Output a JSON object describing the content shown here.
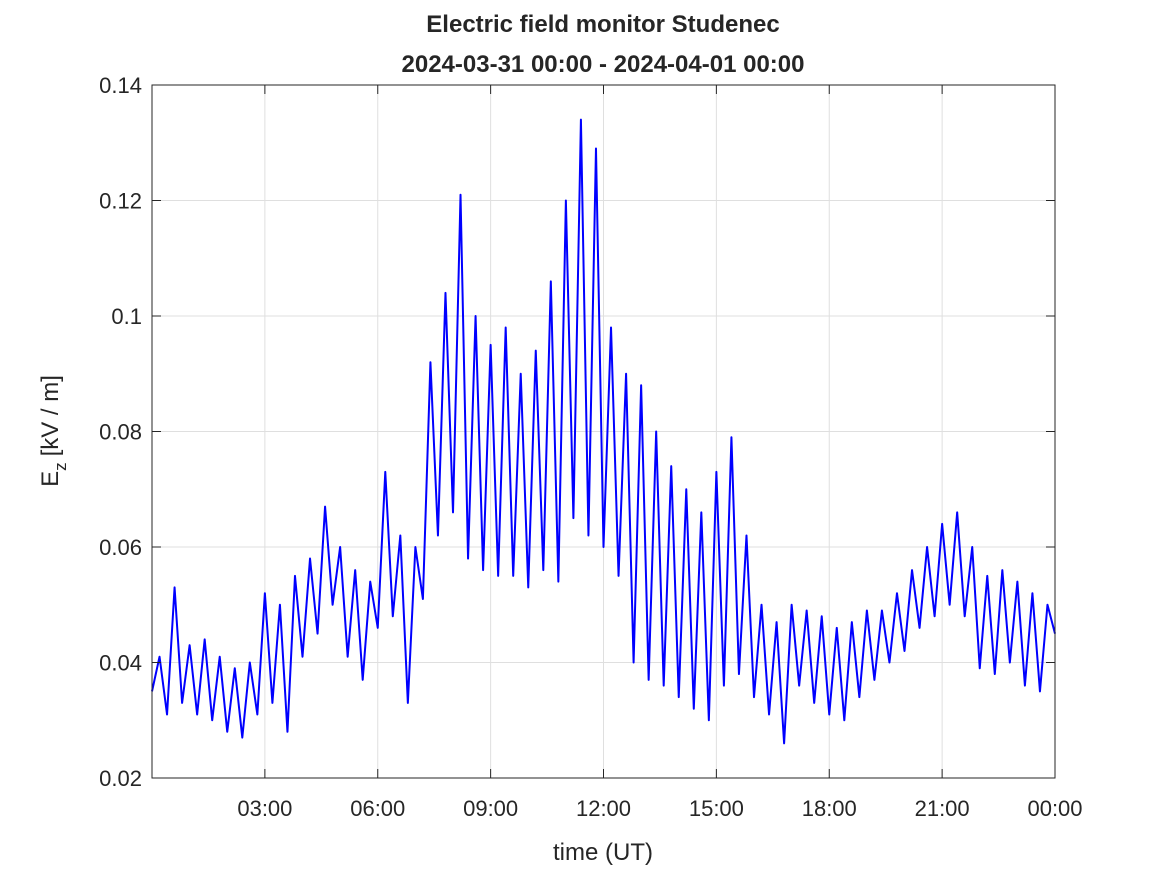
{
  "chart_data": {
    "type": "line",
    "title": "Electric field monitor Studenec",
    "subtitle": "2024-03-31 00:00 - 2024-04-01 00:00",
    "x_label": "time (UT)",
    "y_label": {
      "main": "E",
      "subscript": "z",
      "unit": "[kV / m]"
    },
    "color": "#0000ff",
    "grid": true,
    "xlim": [
      0,
      24
    ],
    "xticks": [
      {
        "value": 3,
        "label": "03:00"
      },
      {
        "value": 6,
        "label": "06:00"
      },
      {
        "value": 9,
        "label": "09:00"
      },
      {
        "value": 12,
        "label": "12:00"
      },
      {
        "value": 15,
        "label": "15:00"
      },
      {
        "value": 18,
        "label": "18:00"
      },
      {
        "value": 21,
        "label": "21:00"
      },
      {
        "value": 24,
        "label": "00:00"
      }
    ],
    "ylim": [
      0.02,
      0.14
    ],
    "yticks": [
      0.02,
      0.04,
      0.06,
      0.08,
      0.1,
      0.12,
      0.14
    ],
    "x": [
      0.0,
      0.2,
      0.4,
      0.6,
      0.8,
      1.0,
      1.2,
      1.4,
      1.6,
      1.8,
      2.0,
      2.2,
      2.4,
      2.6,
      2.8,
      3.0,
      3.2,
      3.4,
      3.6,
      3.8,
      4.0,
      4.2,
      4.4,
      4.6,
      4.8,
      5.0,
      5.2,
      5.4,
      5.6,
      5.8,
      6.0,
      6.2,
      6.4,
      6.6,
      6.8,
      7.0,
      7.2,
      7.4,
      7.6,
      7.8,
      8.0,
      8.2,
      8.4,
      8.6,
      8.8,
      9.0,
      9.2,
      9.4,
      9.6,
      9.8,
      10.0,
      10.2,
      10.4,
      10.6,
      10.8,
      11.0,
      11.2,
      11.4,
      11.6,
      11.8,
      12.0,
      12.2,
      12.4,
      12.6,
      12.8,
      13.0,
      13.2,
      13.4,
      13.6,
      13.8,
      14.0,
      14.2,
      14.4,
      14.6,
      14.8,
      15.0,
      15.2,
      15.4,
      15.6,
      15.8,
      16.0,
      16.2,
      16.4,
      16.6,
      16.8,
      17.0,
      17.2,
      17.4,
      17.6,
      17.8,
      18.0,
      18.2,
      18.4,
      18.6,
      18.8,
      19.0,
      19.2,
      19.4,
      19.6,
      19.8,
      20.0,
      20.2,
      20.4,
      20.6,
      20.8,
      21.0,
      21.2,
      21.4,
      21.6,
      21.8,
      22.0,
      22.2,
      22.4,
      22.6,
      22.8,
      23.0,
      23.2,
      23.4,
      23.6,
      23.8,
      24.0
    ],
    "values": [
      0.035,
      0.041,
      0.031,
      0.053,
      0.033,
      0.043,
      0.031,
      0.044,
      0.03,
      0.041,
      0.028,
      0.039,
      0.027,
      0.04,
      0.031,
      0.052,
      0.033,
      0.05,
      0.028,
      0.055,
      0.041,
      0.058,
      0.045,
      0.067,
      0.05,
      0.06,
      0.041,
      0.056,
      0.037,
      0.054,
      0.046,
      0.073,
      0.048,
      0.062,
      0.033,
      0.06,
      0.051,
      0.092,
      0.062,
      0.104,
      0.066,
      0.121,
      0.058,
      0.1,
      0.056,
      0.095,
      0.055,
      0.098,
      0.055,
      0.09,
      0.053,
      0.094,
      0.056,
      0.106,
      0.054,
      0.12,
      0.065,
      0.134,
      0.062,
      0.129,
      0.06,
      0.098,
      0.055,
      0.09,
      0.04,
      0.088,
      0.037,
      0.08,
      0.036,
      0.074,
      0.034,
      0.07,
      0.032,
      0.066,
      0.03,
      0.073,
      0.036,
      0.079,
      0.038,
      0.062,
      0.034,
      0.05,
      0.031,
      0.047,
      0.026,
      0.05,
      0.036,
      0.049,
      0.033,
      0.048,
      0.031,
      0.046,
      0.03,
      0.047,
      0.034,
      0.049,
      0.037,
      0.049,
      0.04,
      0.052,
      0.042,
      0.056,
      0.046,
      0.06,
      0.048,
      0.064,
      0.05,
      0.066,
      0.048,
      0.06,
      0.039,
      0.055,
      0.038,
      0.056,
      0.04,
      0.054,
      0.036,
      0.052,
      0.035,
      0.05,
      0.045
    ]
  }
}
